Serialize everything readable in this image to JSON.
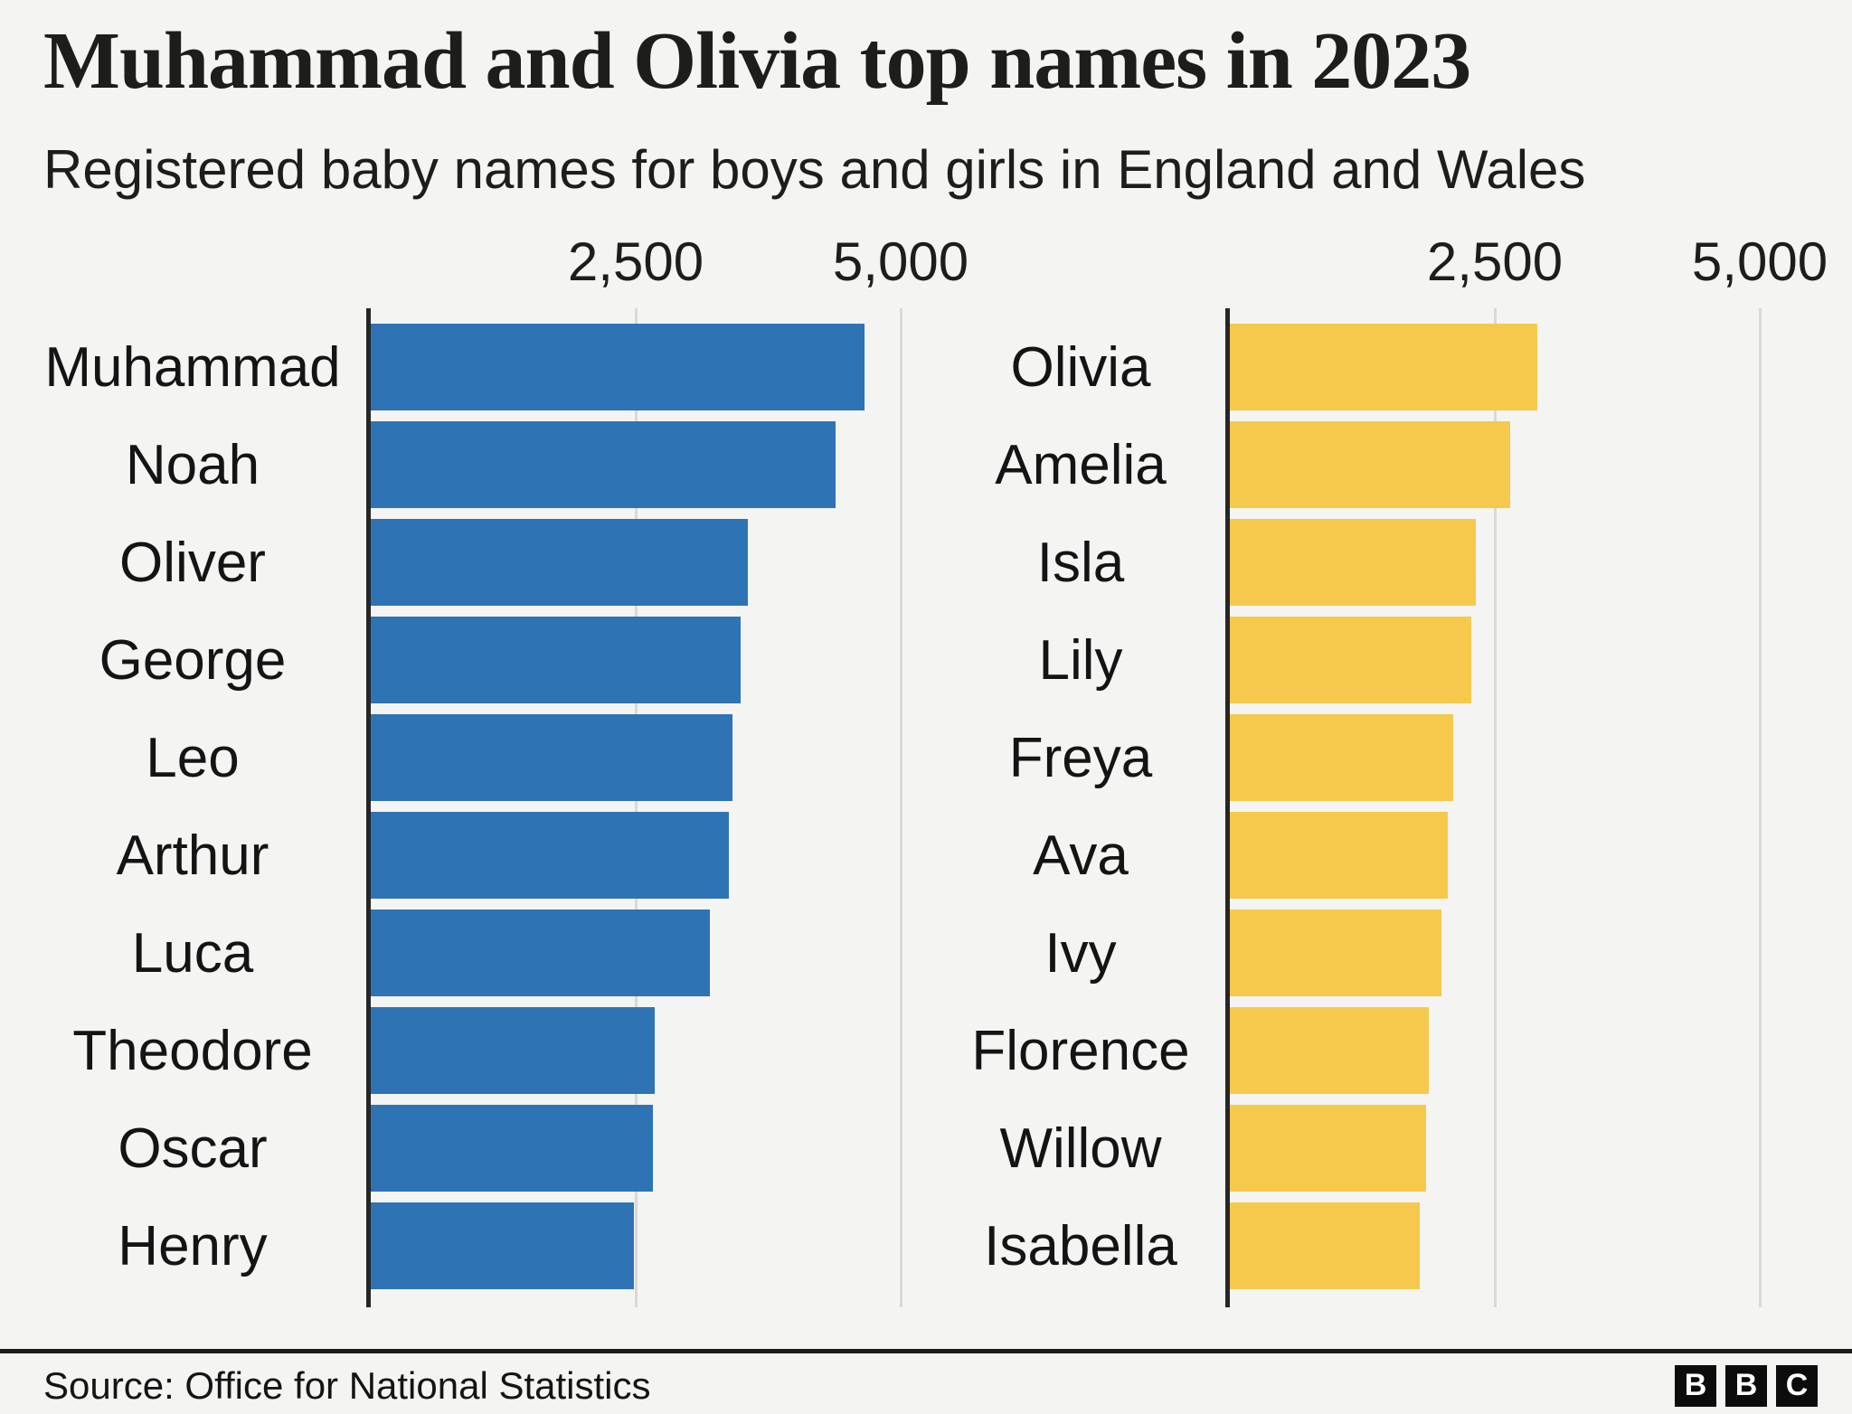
{
  "header": {
    "title": "Muhammad and Olivia top names in 2023",
    "subtitle": "Registered baby names for boys and girls in England and Wales"
  },
  "chart_data": [
    {
      "type": "bar",
      "orientation": "horizontal",
      "series_name": "Boys",
      "categories": [
        "Muhammad",
        "Noah",
        "Oliver",
        "George",
        "Leo",
        "Arthur",
        "Luca",
        "Theodore",
        "Oscar",
        "Henry"
      ],
      "values": [
        4661,
        4382,
        3556,
        3494,
        3416,
        3382,
        3198,
        2683,
        2659,
        2487
      ],
      "xlim": [
        0,
        5120
      ],
      "ticks": [
        2500,
        5000
      ],
      "tick_labels": [
        "2,500",
        "5,000"
      ],
      "bar_color": "#2E73B4",
      "grid": "vertical gridlines at ticks, labels above",
      "legend_position": "none"
    },
    {
      "type": "bar",
      "orientation": "horizontal",
      "series_name": "Girls",
      "categories": [
        "Olivia",
        "Amelia",
        "Isla",
        "Lily",
        "Freya",
        "Ava",
        "Ivy",
        "Florence",
        "Willow",
        "Isabella"
      ],
      "values": [
        2898,
        2642,
        2325,
        2282,
        2109,
        2055,
        1993,
        1879,
        1851,
        1796
      ],
      "xlim": [
        0,
        5120
      ],
      "ticks": [
        2500,
        5000
      ],
      "tick_labels": [
        "2,500",
        "5,000"
      ],
      "bar_color": "#F6C94D",
      "grid": "vertical gridlines at ticks, labels above",
      "legend_position": "none"
    }
  ],
  "footer": {
    "source": "Source: Office for National Statistics",
    "logo_letters": [
      "B",
      "B",
      "C"
    ]
  },
  "colors": {
    "background": "#f4f4f2",
    "boys_bar": "#2E73B4",
    "girls_bar": "#F6C94D",
    "axis": "#262626",
    "gridline": "#d9d9d6",
    "text": "#141414"
  }
}
